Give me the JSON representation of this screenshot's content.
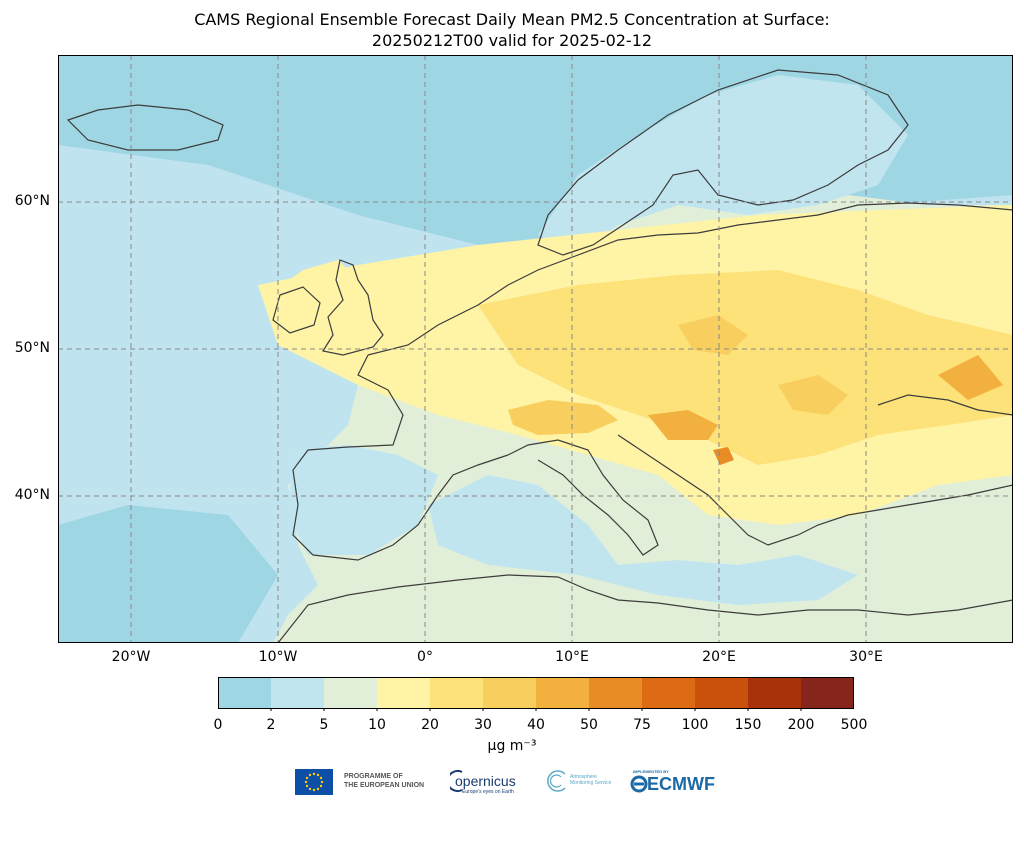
{
  "title": {
    "line1": "CAMS Regional Ensemble Forecast Daily Mean PM2.5 Concentration at Surface:",
    "line2": "20250212T00 valid for 2025-02-12"
  },
  "map": {
    "lon_range": [
      -25,
      40
    ],
    "lat_range": [
      30,
      70
    ],
    "ocean_color": "#bfe3ef",
    "land_color": "#e2efd8",
    "latitude_ticks": [
      {
        "value": 60,
        "label": "60°N"
      },
      {
        "value": 50,
        "label": "50°N"
      },
      {
        "value": 40,
        "label": "40°N"
      }
    ],
    "longitude_ticks": [
      {
        "value": -20,
        "label": "20°W"
      },
      {
        "value": -10,
        "label": "10°W"
      },
      {
        "value": 0,
        "label": "0°"
      },
      {
        "value": 10,
        "label": "10°E"
      },
      {
        "value": 20,
        "label": "20°E"
      },
      {
        "value": 30,
        "label": "30°E"
      }
    ]
  },
  "colorbar": {
    "ticks": [
      "0",
      "2",
      "5",
      "10",
      "20",
      "30",
      "40",
      "50",
      "75",
      "100",
      "150",
      "200",
      "500"
    ],
    "colors": [
      "#9fd6e3",
      "#c0e5ef",
      "#e2efd8",
      "#fff3a6",
      "#fde27a",
      "#f8cf5e",
      "#f2b03f",
      "#e88d26",
      "#dd6a14",
      "#c9510b",
      "#a8320a",
      "#85251c"
    ],
    "unit": "μg m⁻³"
  },
  "logos": {
    "eu_line1": "PROGRAMME OF",
    "eu_line2": "THE EUROPEAN UNION",
    "copernicus": "opernicus",
    "copernicus_sub": "Europe's eyes on Earth",
    "cams_line1": "Atmosphere",
    "cams_line2": "Monitoring Service",
    "ecmwf_small": "IMPLEMENTED BY",
    "ecmwf": "ECMWF"
  }
}
